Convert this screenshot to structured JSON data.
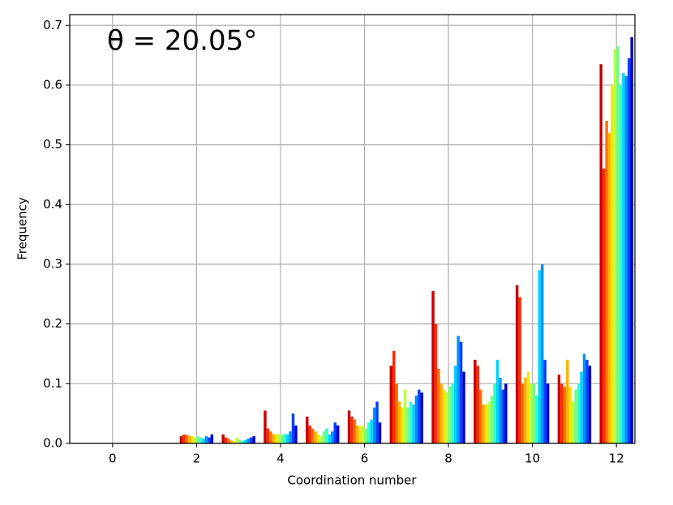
{
  "chart_data": {
    "type": "bar",
    "annotation": "θ = 20.05°",
    "xlabel": "Coordination number",
    "ylabel": "Frequency",
    "x": [
      0,
      1,
      2,
      3,
      4,
      5,
      6,
      7,
      8,
      9,
      10,
      11,
      12
    ],
    "series": [
      {
        "color": "#c80000",
        "values": [
          0,
          0,
          0.012,
          0.015,
          0.055,
          0.045,
          0.055,
          0.13,
          0.255,
          0.14,
          0.265,
          0.115,
          0.635
        ]
      },
      {
        "color": "#ff2a00",
        "values": [
          0,
          0,
          0.015,
          0.01,
          0.025,
          0.03,
          0.045,
          0.155,
          0.2,
          0.13,
          0.245,
          0.1,
          0.46
        ]
      },
      {
        "color": "#ff7000",
        "values": [
          0,
          0,
          0.014,
          0.008,
          0.02,
          0.025,
          0.04,
          0.1,
          0.125,
          0.09,
          0.1,
          0.095,
          0.54
        ]
      },
      {
        "color": "#ffb000",
        "values": [
          0,
          0,
          0.013,
          0.005,
          0.015,
          0.02,
          0.03,
          0.07,
          0.1,
          0.065,
          0.11,
          0.14,
          0.52
        ]
      },
      {
        "color": "#f0e800",
        "values": [
          0,
          0,
          0.012,
          0.004,
          0.015,
          0.015,
          0.028,
          0.06,
          0.09,
          0.065,
          0.12,
          0.095,
          0.6
        ]
      },
      {
        "color": "#b8ff40",
        "values": [
          0,
          0,
          0.01,
          0.01,
          0.016,
          0.012,
          0.03,
          0.09,
          0.085,
          0.07,
          0.1,
          0.07,
          0.66
        ]
      },
      {
        "color": "#70ff88",
        "values": [
          0,
          0,
          0.012,
          0.006,
          0.014,
          0.02,
          0.025,
          0.06,
          0.095,
          0.08,
          0.1,
          0.09,
          0.665
        ]
      },
      {
        "color": "#30ffc8",
        "values": [
          0,
          0,
          0.01,
          0.004,
          0.016,
          0.025,
          0.035,
          0.07,
          0.1,
          0.1,
          0.08,
          0.1,
          0.6
        ]
      },
      {
        "color": "#00d4ff",
        "values": [
          0,
          0,
          0.008,
          0.006,
          0.015,
          0.015,
          0.04,
          0.065,
          0.13,
          0.14,
          0.29,
          0.12,
          0.62
        ]
      },
      {
        "color": "#0090ff",
        "values": [
          0,
          0,
          0.012,
          0.008,
          0.02,
          0.02,
          0.06,
          0.08,
          0.18,
          0.11,
          0.3,
          0.15,
          0.615
        ]
      },
      {
        "color": "#0040ff",
        "values": [
          0,
          0,
          0.01,
          0.01,
          0.05,
          0.035,
          0.07,
          0.09,
          0.17,
          0.09,
          0.14,
          0.14,
          0.645
        ]
      },
      {
        "color": "#0000c8",
        "values": [
          0,
          0,
          0.015,
          0.012,
          0.03,
          0.03,
          0.035,
          0.085,
          0.12,
          0.1,
          0.1,
          0.13,
          0.68
        ]
      }
    ],
    "xlim": [
      -1.02,
      12.44
    ],
    "ylim": [
      0,
      0.718
    ],
    "xticks": [
      0,
      2,
      4,
      6,
      8,
      10,
      12
    ],
    "yticks": [
      {
        "value": 0,
        "label": "0.0"
      },
      0.1,
      0.2,
      0.3,
      0.4,
      0.5,
      0.6,
      0.7
    ],
    "grid": true
  }
}
